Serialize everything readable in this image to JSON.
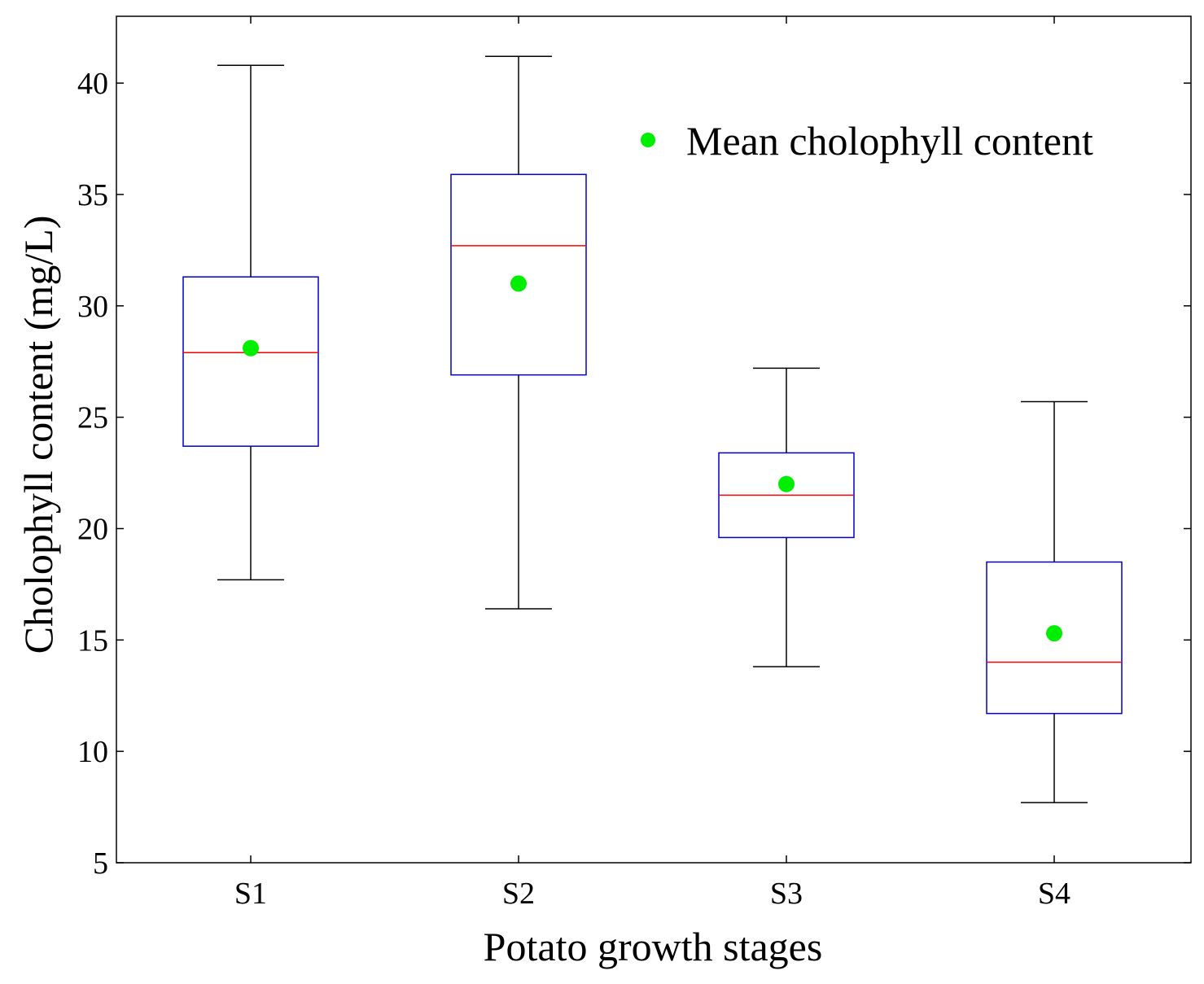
{
  "chart_data": {
    "type": "box",
    "title": "",
    "xlabel": "Potato growth stages",
    "ylabel": "Cholophyll content (mg/L)",
    "ylim": [
      5,
      43
    ],
    "yticks": [
      5,
      10,
      15,
      20,
      25,
      30,
      35,
      40
    ],
    "categories": [
      "S1",
      "S2",
      "S3",
      "S4"
    ],
    "boxes": [
      {
        "category": "S1",
        "whisker_low": 17.7,
        "q1": 23.7,
        "median": 27.9,
        "q3": 31.3,
        "whisker_high": 40.8,
        "mean": 28.1
      },
      {
        "category": "S2",
        "whisker_low": 16.4,
        "q1": 26.9,
        "median": 32.7,
        "q3": 35.9,
        "whisker_high": 41.2,
        "mean": 31.0
      },
      {
        "category": "S3",
        "whisker_low": 13.8,
        "q1": 19.6,
        "median": 21.5,
        "q3": 23.4,
        "whisker_high": 27.2,
        "mean": 22.0
      },
      {
        "category": "S4",
        "whisker_low": 7.7,
        "q1": 11.7,
        "median": 14.0,
        "q3": 18.5,
        "whisker_high": 25.7,
        "mean": 15.3
      }
    ],
    "legend": {
      "label": "Mean cholophyll content",
      "placement": "top-right"
    },
    "colors": {
      "box": "#0000cc",
      "median": "#ff0000",
      "whisker": "#000000",
      "mean": "#00ee00",
      "axes": "#000000"
    }
  }
}
